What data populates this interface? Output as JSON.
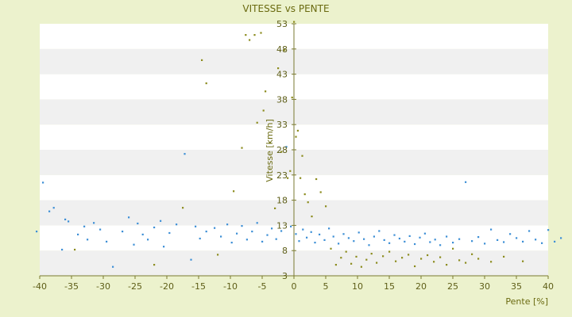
{
  "chart_data": {
    "type": "scatter",
    "title": "VITESSE vs PENTE",
    "xlabel": "Pente [%]",
    "ylabel": "Vitesse [km/h]",
    "xlim": [
      -40,
      40
    ],
    "ylim": [
      3,
      53
    ],
    "x_ticks": [
      "-40",
      "-35",
      "-30",
      "-25",
      "-20",
      "-15",
      "-10",
      "-5",
      "0",
      "5",
      "10",
      "15",
      "20",
      "25",
      "30",
      "35",
      "40"
    ],
    "y_ticks": [
      "3",
      "8",
      "13",
      "18",
      "23",
      "28",
      "33",
      "38",
      "43",
      "48",
      "53"
    ],
    "grid": "horizontal alternating bands",
    "legend": "none",
    "colors": {
      "background": "#ecf2cd",
      "band_light": "#ffffff",
      "band_dark": "#f0f0f0",
      "axis": "#7a7a30",
      "series_blue": "#3d8fd6",
      "series_olive": "#8c8c1e"
    },
    "series": [
      {
        "color": "#3d8fd6",
        "points": [
          [
            -40.5,
            11.8
          ],
          [
            -39.5,
            21.5
          ],
          [
            -38.5,
            15.8
          ],
          [
            -37.8,
            16.5
          ],
          [
            -36.5,
            8.2
          ],
          [
            -36,
            14.2
          ],
          [
            -35.5,
            13.8
          ],
          [
            -34,
            11.2
          ],
          [
            -33,
            12.8
          ],
          [
            -32.5,
            10.2
          ],
          [
            -31.5,
            13.5
          ],
          [
            -30.5,
            12.2
          ],
          [
            -29.5,
            9.8
          ],
          [
            -28.5,
            4.8
          ],
          [
            -27,
            11.8
          ],
          [
            -26,
            14.6
          ],
          [
            -25.2,
            9.2
          ],
          [
            -24.6,
            13.4
          ],
          [
            -23.8,
            11.2
          ],
          [
            -23,
            10.2
          ],
          [
            -22,
            12.6
          ],
          [
            -21,
            13.9
          ],
          [
            -20.5,
            8.8
          ],
          [
            -19.6,
            11.5
          ],
          [
            -18.5,
            13.2
          ],
          [
            -17.2,
            27.2
          ],
          [
            -16.2,
            6.2
          ],
          [
            -15.5,
            12.8
          ],
          [
            -14.8,
            10.4
          ],
          [
            -13.8,
            11.8
          ],
          [
            -12.5,
            12.5
          ],
          [
            -11.5,
            10.8
          ],
          [
            -10.5,
            13.2
          ],
          [
            -9.8,
            9.6
          ],
          [
            -9,
            11.4
          ],
          [
            -8.2,
            12.9
          ],
          [
            -7.4,
            10.2
          ],
          [
            -6.6,
            11.8
          ],
          [
            -5.8,
            13.5
          ],
          [
            -5,
            9.8
          ],
          [
            -4.2,
            11.1
          ],
          [
            -3.5,
            12.4
          ],
          [
            -2.8,
            10.3
          ],
          [
            -2,
            11.9
          ],
          [
            -1.2,
            28.6
          ],
          [
            -0.5,
            12.8
          ],
          [
            0.3,
            11.3
          ],
          [
            0.8,
            9.9
          ],
          [
            1.4,
            12.2
          ],
          [
            2,
            10.6
          ],
          [
            2.7,
            11.7
          ],
          [
            3.3,
            9.6
          ],
          [
            4,
            11.2
          ],
          [
            4.8,
            10.1
          ],
          [
            5.5,
            12.4
          ],
          [
            6.2,
            10.8
          ],
          [
            7,
            9.4
          ],
          [
            7.8,
            11.3
          ],
          [
            8.6,
            10.5
          ],
          [
            9.4,
            9.9
          ],
          [
            10.2,
            11.6
          ],
          [
            11,
            10.3
          ],
          [
            11.8,
            9.1
          ],
          [
            12.6,
            10.8
          ],
          [
            13.4,
            11.9
          ],
          [
            14.2,
            10.1
          ],
          [
            15,
            9.5
          ],
          [
            15.8,
            11.1
          ],
          [
            16.6,
            10.4
          ],
          [
            17.4,
            9.8
          ],
          [
            18.2,
            10.9
          ],
          [
            19,
            9.3
          ],
          [
            19.8,
            10.6
          ],
          [
            20.6,
            11.4
          ],
          [
            21.4,
            9.7
          ],
          [
            22.2,
            10.2
          ],
          [
            23,
            9.1
          ],
          [
            24,
            10.8
          ],
          [
            25,
            9.6
          ],
          [
            26,
            10.3
          ],
          [
            27,
            21.6
          ],
          [
            28,
            9.9
          ],
          [
            29,
            10.7
          ],
          [
            30,
            9.4
          ],
          [
            31,
            12.2
          ],
          [
            32,
            10.1
          ],
          [
            33,
            9.7
          ],
          [
            34,
            11.3
          ],
          [
            35,
            10.5
          ],
          [
            36,
            9.8
          ],
          [
            37,
            11.9
          ],
          [
            38,
            10.2
          ],
          [
            39,
            9.5
          ],
          [
            40,
            12.1
          ],
          [
            41,
            9.8
          ],
          [
            42,
            10.5
          ]
        ]
      },
      {
        "color": "#8c8c1e",
        "points": [
          [
            -34.5,
            8.2
          ],
          [
            -22,
            5.2
          ],
          [
            -17.5,
            16.5
          ],
          [
            -14.5,
            45.8
          ],
          [
            -13.8,
            41.2
          ],
          [
            -12,
            7.2
          ],
          [
            -9.5,
            19.8
          ],
          [
            -8.2,
            28.4
          ],
          [
            -7.6,
            50.8
          ],
          [
            -7,
            49.8
          ],
          [
            -6.2,
            50.8
          ],
          [
            -5.8,
            33.4
          ],
          [
            -5.2,
            51.2
          ],
          [
            -4.8,
            35.8
          ],
          [
            -4.5,
            39.6
          ],
          [
            -3.8,
            29.4
          ],
          [
            -3,
            16.4
          ],
          [
            -2.5,
            44.2
          ],
          [
            -2,
            27.6
          ],
          [
            -1.5,
            47.8
          ],
          [
            -1,
            22.4
          ],
          [
            -0.6,
            23.8
          ],
          [
            -0.3,
            38.4
          ],
          [
            0,
            53.4
          ],
          [
            0.3,
            30.6
          ],
          [
            0.6,
            31.8
          ],
          [
            1,
            22.4
          ],
          [
            1.3,
            26.8
          ],
          [
            1.7,
            19.2
          ],
          [
            2.2,
            17.6
          ],
          [
            2.8,
            14.8
          ],
          [
            3.5,
            22.2
          ],
          [
            4.2,
            19.6
          ],
          [
            5,
            16.8
          ],
          [
            5.8,
            8.4
          ],
          [
            6.6,
            5.2
          ],
          [
            7.4,
            6.6
          ],
          [
            8.2,
            7.8
          ],
          [
            9,
            5.4
          ],
          [
            9.8,
            6.8
          ],
          [
            10.6,
            4.8
          ],
          [
            11.4,
            6.2
          ],
          [
            12.2,
            7.4
          ],
          [
            13,
            5.6
          ],
          [
            14,
            6.9
          ],
          [
            15,
            7.8
          ],
          [
            16,
            5.9
          ],
          [
            17,
            6.6
          ],
          [
            18,
            7.2
          ],
          [
            19,
            4.9
          ],
          [
            20,
            6.4
          ],
          [
            21,
            7.1
          ],
          [
            22,
            5.8
          ],
          [
            23,
            6.7
          ],
          [
            24,
            5.2
          ],
          [
            25,
            8.4
          ],
          [
            26,
            6.1
          ],
          [
            27,
            5.6
          ],
          [
            28,
            7.3
          ],
          [
            29,
            6.4
          ],
          [
            31,
            5.8
          ],
          [
            33,
            6.8
          ],
          [
            36,
            5.9
          ]
        ]
      }
    ]
  }
}
